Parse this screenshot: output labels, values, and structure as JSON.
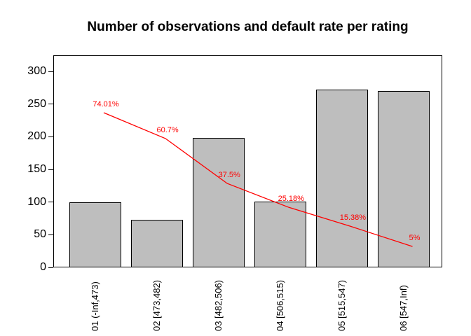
{
  "chart_data": {
    "type": "bar",
    "title": "Number of observations and default rate per rating",
    "categories": [
      "01 (-Inf,473)",
      "02 [473,482)",
      "03 [482,506)",
      "04 [506,515)",
      "05 [515,547)",
      "06 [547,Inf)"
    ],
    "series": [
      {
        "name": "Number of observations",
        "type": "bar",
        "values": [
          100,
          73,
          198,
          101,
          272,
          270
        ]
      },
      {
        "name": "Default rate",
        "type": "line",
        "values_percent": [
          74.01,
          60.7,
          37.5,
          25.18,
          15.38,
          5
        ],
        "labels": [
          "74.01%",
          "60.7%",
          "37.5%",
          "25.18%",
          "15.38%",
          "5%"
        ]
      }
    ],
    "xlabel": "",
    "ylabel": "",
    "ylim": [
      0,
      300
    ],
    "yticks": [
      "0",
      "50",
      "100",
      "150",
      "200",
      "250",
      "300"
    ],
    "grid": false,
    "legend": "none",
    "colors": {
      "bar_fill": "#BEBEBE",
      "bar_border": "#000000",
      "line": "#FF0000",
      "line_labels": "#FF0000",
      "text": "#000000",
      "background": "#FFFFFF"
    }
  }
}
